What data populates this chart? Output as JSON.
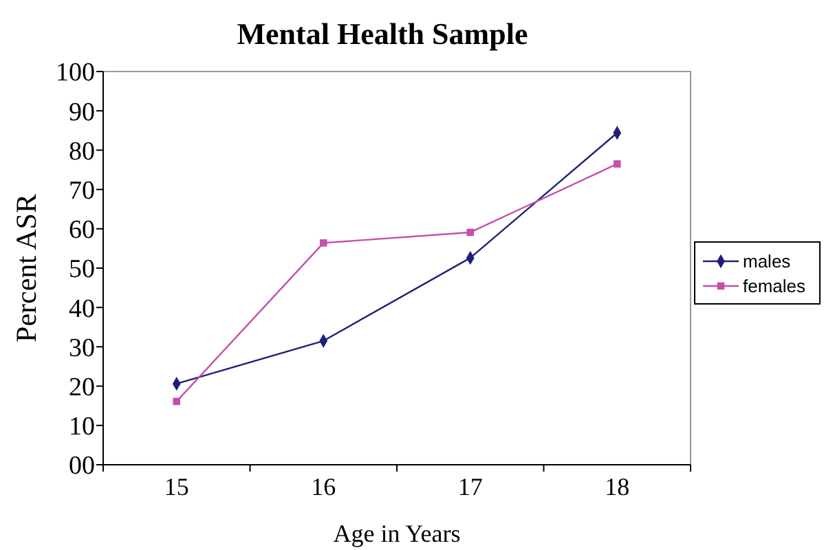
{
  "chart_data": {
    "type": "line",
    "title": "Mental Health Sample",
    "xlabel": "Age in Years",
    "ylabel": "Percent ASR",
    "categories": [
      "15",
      "16",
      "17",
      "18"
    ],
    "series": [
      {
        "name": "males",
        "color": "#1f1f7a",
        "marker": "diamond",
        "values": [
          20.6,
          31.5,
          52.6,
          84.4
        ]
      },
      {
        "name": "females",
        "color": "#c64fa8",
        "marker": "square",
        "values": [
          16.1,
          56.4,
          59.1,
          76.5
        ]
      }
    ],
    "ylim": [
      0,
      100
    ],
    "yticks": [
      {
        "value": 0,
        "label": "00"
      },
      10,
      20,
      30,
      40,
      50,
      60,
      70,
      80,
      90,
      100
    ],
    "grid": false,
    "legend": "right"
  }
}
